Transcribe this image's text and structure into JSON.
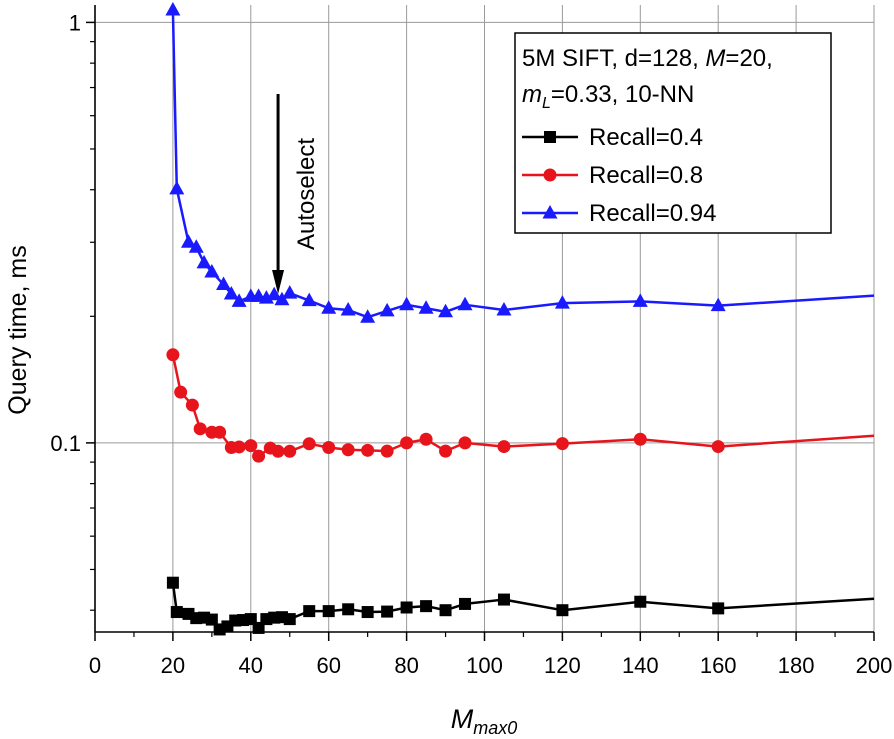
{
  "chart_data": {
    "type": "line",
    "xlabel_main": "M",
    "xlabel_sub": "max0",
    "ylabel": "Query time, ms",
    "x_range": [
      0,
      200
    ],
    "y_range": [
      0.0355,
      1.1
    ],
    "y_scale": "log",
    "x_ticks": [
      0,
      20,
      40,
      60,
      80,
      100,
      120,
      140,
      160,
      180,
      200
    ],
    "y_ticks": [
      {
        "value": 0.1,
        "label": "0.1"
      },
      {
        "value": 1,
        "label": "1"
      }
    ],
    "grid": true,
    "legend": {
      "placement": "top-right",
      "title_line1": "5M SIFT, d=128, M=20,",
      "title_line2": "mL=0.33, 10-NN",
      "title_parts": {
        "l1a": "5M SIFT, d=128, ",
        "l1b": "M",
        "l1c": "=20,",
        "l2a": "m",
        "l2b": "L",
        "l2c": "=0.33, 10-NN"
      }
    },
    "annotation": {
      "text": "Autoselect",
      "x": 47
    },
    "series": [
      {
        "name": "Recall=0.4",
        "color": "#000000",
        "marker": "square",
        "x": [
          20,
          21,
          24,
          26,
          28,
          30,
          32,
          34,
          36,
          38,
          40,
          42,
          44,
          46,
          48,
          50,
          55,
          60,
          65,
          70,
          75,
          80,
          85,
          90,
          95,
          105,
          120,
          140,
          160,
          200
        ],
        "y": [
          0.0465,
          0.0396,
          0.0392,
          0.0383,
          0.0384,
          0.038,
          0.036,
          0.0366,
          0.0378,
          0.0379,
          0.0381,
          0.0363,
          0.0381,
          0.0384,
          0.0385,
          0.0381,
          0.0398,
          0.0398,
          0.0402,
          0.0396,
          0.0397,
          0.0406,
          0.0409,
          0.04,
          0.0414,
          0.0424,
          0.04,
          0.0419,
          0.0404,
          0.0426
        ]
      },
      {
        "name": "Recall=0.8",
        "color": "#e8141c",
        "marker": "circle",
        "x": [
          20,
          22,
          25,
          27,
          30,
          32,
          35,
          37,
          40,
          42,
          45,
          47,
          50,
          55,
          60,
          65,
          70,
          75,
          80,
          85,
          90,
          95,
          105,
          120,
          140,
          160,
          200
        ],
        "y": [
          0.162,
          0.132,
          0.123,
          0.108,
          0.106,
          0.106,
          0.0975,
          0.0978,
          0.0985,
          0.093,
          0.0972,
          0.0955,
          0.0955,
          0.0995,
          0.0975,
          0.0963,
          0.096,
          0.0956,
          0.1,
          0.102,
          0.0956,
          0.1,
          0.098,
          0.0996,
          0.102,
          0.098,
          0.104
        ]
      },
      {
        "name": "Recall=0.94",
        "color": "#1a1aff",
        "marker": "triangle",
        "x": [
          20,
          21,
          24,
          26,
          28,
          30,
          33,
          35,
          37,
          40,
          42,
          44,
          46,
          48,
          50,
          55,
          60,
          65,
          70,
          75,
          80,
          85,
          90,
          95,
          105,
          120,
          140,
          160,
          200
        ],
        "y": [
          1.07,
          0.402,
          0.3,
          0.292,
          0.268,
          0.255,
          0.238,
          0.226,
          0.217,
          0.223,
          0.223,
          0.221,
          0.225,
          0.219,
          0.227,
          0.218,
          0.209,
          0.207,
          0.199,
          0.206,
          0.213,
          0.209,
          0.205,
          0.213,
          0.207,
          0.215,
          0.217,
          0.212,
          0.224
        ]
      }
    ]
  }
}
